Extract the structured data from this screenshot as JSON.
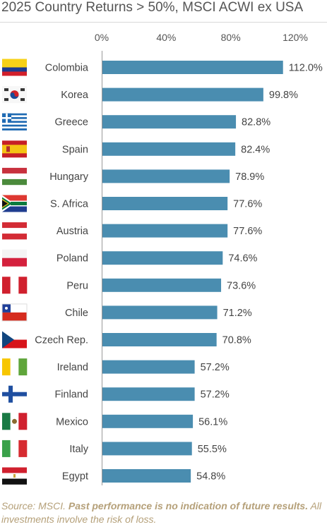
{
  "chart_data": {
    "type": "bar",
    "orientation": "horizontal",
    "title": "2025 Country Returns > 50%, MSCI ACWI ex USA",
    "categories": [
      "Colombia",
      "Korea",
      "Greece",
      "Spain",
      "Hungary",
      "S. Africa",
      "Austria",
      "Poland",
      "Peru",
      "Chile",
      "Czech Rep.",
      "Ireland",
      "Finland",
      "Mexico",
      "Italy",
      "Egypt"
    ],
    "values": [
      112.0,
      99.8,
      82.8,
      82.4,
      78.9,
      77.6,
      77.6,
      74.6,
      73.6,
      71.2,
      70.8,
      57.2,
      57.2,
      56.1,
      55.5,
      54.8
    ],
    "value_labels": [
      "112.0%",
      "99.8%",
      "82.8%",
      "82.4%",
      "78.9%",
      "77.6%",
      "77.6%",
      "74.6%",
      "73.6%",
      "71.2%",
      "70.8%",
      "57.2%",
      "57.2%",
      "56.1%",
      "55.5%",
      "54.8%"
    ],
    "xlim": [
      0,
      120
    ],
    "x_ticks": [
      0,
      40,
      80,
      120
    ],
    "x_tick_labels": [
      "0%",
      "40%",
      "80%",
      "120%"
    ],
    "bar_color": "#4a8db0",
    "tick_position": "top",
    "grid": false,
    "legend": "none"
  },
  "flags": [
    "colombia-flag",
    "korea-flag",
    "greece-flag",
    "spain-flag",
    "hungary-flag",
    "south-africa-flag",
    "austria-flag",
    "poland-flag",
    "peru-flag",
    "chile-flag",
    "czech-flag",
    "ireland-flag",
    "finland-flag",
    "mexico-flag",
    "italy-flag",
    "egypt-flag"
  ],
  "footer": {
    "source": "Source: MSCI.",
    "disclaimer": "Past performance is no indication of future results.",
    "note": "All investments involve the risk of loss."
  },
  "colors": {
    "source_text": "#b5a079",
    "axis": "#999999"
  }
}
